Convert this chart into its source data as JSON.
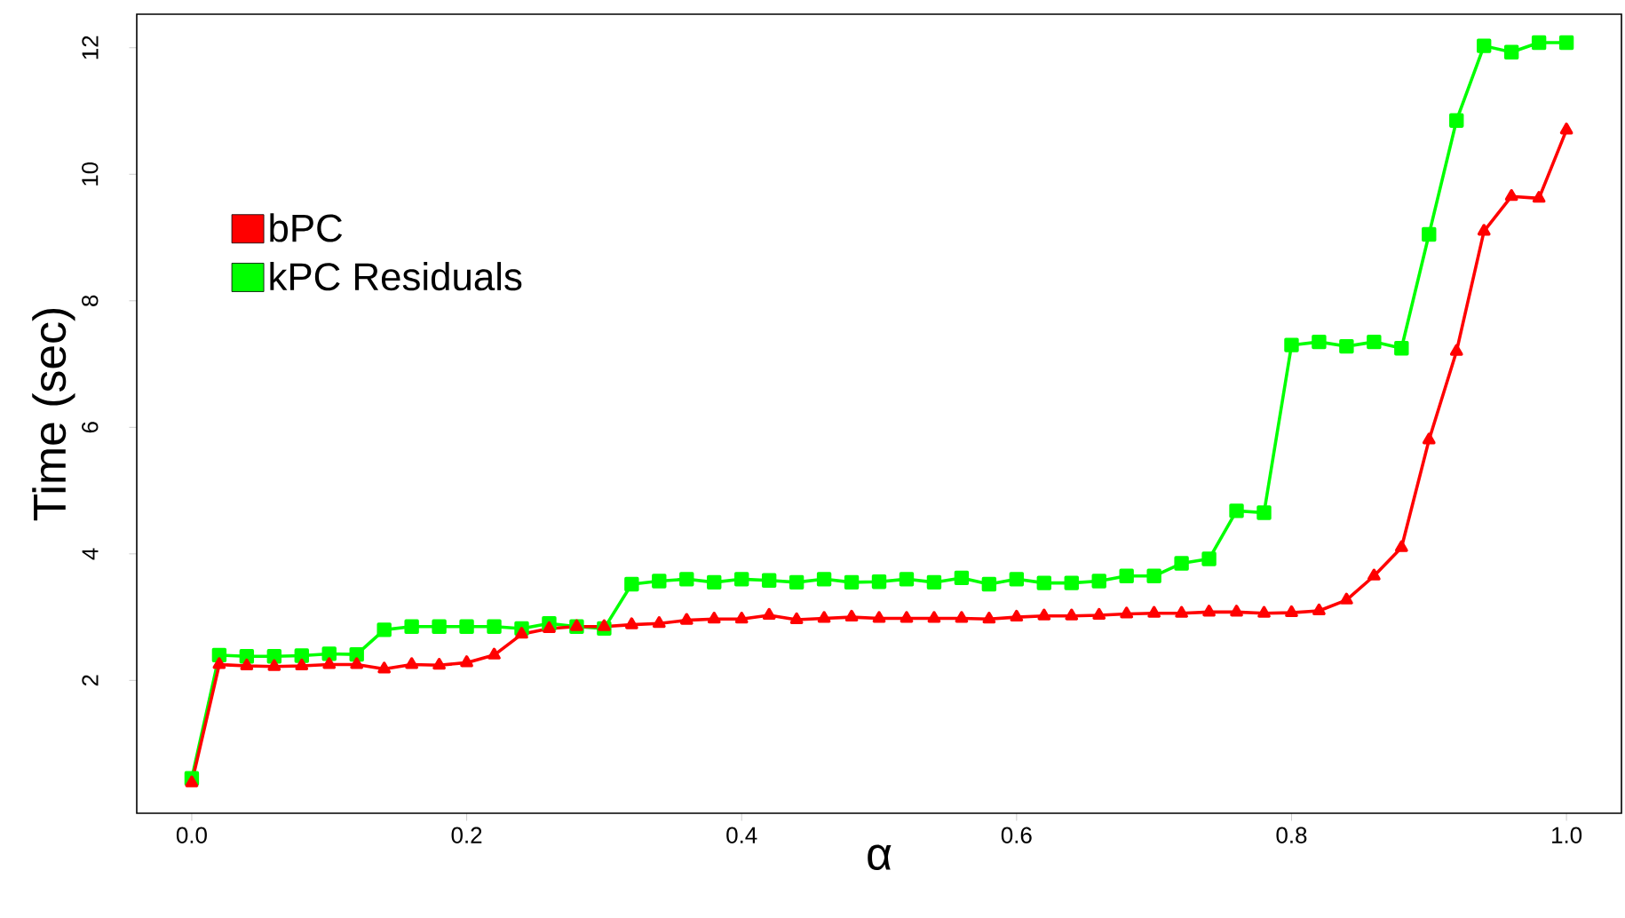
{
  "chart_data": {
    "type": "line",
    "xlabel": "α",
    "ylabel": "Time (sec)",
    "x": [
      0,
      0.02,
      0.04,
      0.06,
      0.08,
      0.1,
      0.12,
      0.14,
      0.16,
      0.18,
      0.2,
      0.22,
      0.24,
      0.26,
      0.28,
      0.3,
      0.32,
      0.34,
      0.36,
      0.38,
      0.4,
      0.42,
      0.44,
      0.46,
      0.48,
      0.5,
      0.52,
      0.54,
      0.56,
      0.58,
      0.6,
      0.62,
      0.64,
      0.66,
      0.68,
      0.7,
      0.72,
      0.74,
      0.76,
      0.78,
      0.8,
      0.82,
      0.84,
      0.86,
      0.88,
      0.9,
      0.92,
      0.94,
      0.96,
      0.98,
      1.0
    ],
    "series": [
      {
        "name": "bPC",
        "color": "#ff0000",
        "marker": "triangle",
        "values": [
          0.38,
          2.25,
          2.23,
          2.22,
          2.23,
          2.25,
          2.25,
          2.18,
          2.25,
          2.24,
          2.28,
          2.4,
          2.73,
          2.82,
          2.85,
          2.85,
          2.88,
          2.9,
          2.95,
          2.97,
          2.97,
          3.03,
          2.96,
          2.98,
          3.0,
          2.98,
          2.98,
          2.98,
          2.98,
          2.97,
          3.0,
          3.02,
          3.02,
          3.03,
          3.05,
          3.06,
          3.06,
          3.08,
          3.08,
          3.06,
          3.07,
          3.1,
          3.27,
          3.65,
          4.1,
          5.8,
          7.2,
          9.1,
          9.65,
          9.62,
          10.7
        ]
      },
      {
        "name": "kPC Residuals",
        "color": "#00ff00",
        "marker": "square",
        "values": [
          0.45,
          2.4,
          2.38,
          2.38,
          2.39,
          2.42,
          2.41,
          2.8,
          2.85,
          2.85,
          2.85,
          2.85,
          2.82,
          2.9,
          2.85,
          2.82,
          3.52,
          3.57,
          3.6,
          3.55,
          3.6,
          3.58,
          3.55,
          3.6,
          3.55,
          3.56,
          3.6,
          3.55,
          3.62,
          3.52,
          3.6,
          3.54,
          3.54,
          3.57,
          3.65,
          3.65,
          3.85,
          3.92,
          4.68,
          4.65,
          7.3,
          7.35,
          7.28,
          7.35,
          7.25,
          9.05,
          10.85,
          12.03,
          11.93,
          12.08,
          12.08
        ]
      }
    ],
    "xlim": [
      -0.04,
      1.04
    ],
    "ylim": [
      -0.1,
      12.53
    ],
    "xticks": [
      {
        "value": 0,
        "label": "0.0"
      },
      {
        "value": 0.2,
        "label": "0.2"
      },
      {
        "value": 0.4,
        "label": "0.4"
      },
      {
        "value": 0.6,
        "label": "0.6"
      },
      {
        "value": 0.8,
        "label": "0.8"
      },
      {
        "value": 1.0,
        "label": "1.0"
      }
    ],
    "yticks": [
      2,
      4,
      6,
      8,
      10,
      12
    ],
    "legend": "top left",
    "grid": false,
    "line_style": "solid"
  }
}
